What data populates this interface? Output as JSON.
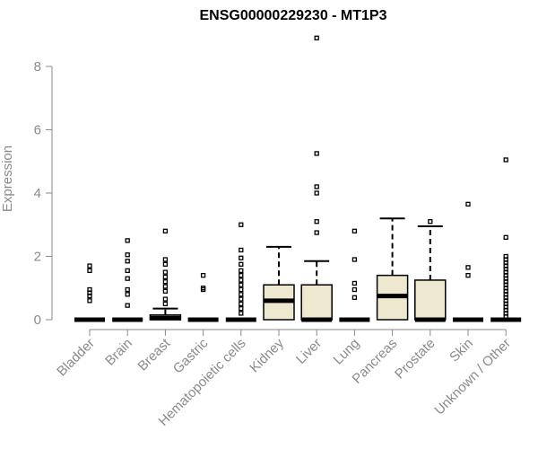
{
  "chart_data": {
    "type": "box",
    "title": "ENSG00000229230 - MT1P3",
    "xlabel": "",
    "ylabel": "Expression",
    "ylim": [
      0,
      8
    ],
    "yticks": [
      0,
      2,
      4,
      6,
      8
    ],
    "grid": false,
    "box_fill": "#efe8d0",
    "stroke_color": "#000000",
    "axis_color": "#8a8a8a",
    "categories": [
      "Bladder",
      "Brain",
      "Breast",
      "Gastric",
      "Hematopoietic cells",
      "Kidney",
      "Liver",
      "Lung",
      "Pancreas",
      "Prostate",
      "Skin",
      "Unknown / Other"
    ],
    "boxes": [
      {
        "q1": 0,
        "median": 0,
        "q3": 0,
        "whisker_low": 0,
        "whisker_high": 0,
        "outliers": [
          0.6,
          0.75,
          0.85,
          0.95,
          1.55,
          1.7
        ]
      },
      {
        "q1": 0,
        "median": 0,
        "q3": 0,
        "whisker_low": 0,
        "whisker_high": 0,
        "outliers": [
          0.45,
          0.8,
          0.95,
          1.3,
          1.55,
          1.85,
          2.05,
          2.5
        ]
      },
      {
        "q1": 0,
        "median": 0.05,
        "q3": 0.15,
        "whisker_low": 0,
        "whisker_high": 0.35,
        "outliers": [
          0.5,
          0.65,
          0.9,
          1.05,
          1.2,
          1.35,
          1.5,
          1.75,
          1.9,
          2.8
        ]
      },
      {
        "q1": 0,
        "median": 0,
        "q3": 0,
        "whisker_low": 0,
        "whisker_high": 0,
        "outliers": [
          0.95,
          1.0,
          1.4
        ]
      },
      {
        "q1": 0,
        "median": 0,
        "q3": 0,
        "whisker_low": 0,
        "whisker_high": 0,
        "outliers": [
          0.2,
          0.35,
          0.5,
          0.65,
          0.8,
          0.95,
          1.1,
          1.25,
          1.4,
          1.55,
          1.75,
          1.95,
          2.2,
          3.0
        ]
      },
      {
        "q1": 0,
        "median": 0.6,
        "q3": 1.1,
        "whisker_low": 0,
        "whisker_high": 2.3,
        "outliers": []
      },
      {
        "q1": 0,
        "median": 0,
        "q3": 1.1,
        "whisker_low": 0,
        "whisker_high": 1.85,
        "outliers": [
          2.75,
          3.1,
          4.0,
          4.2,
          5.25,
          8.9
        ]
      },
      {
        "q1": 0,
        "median": 0,
        "q3": 0,
        "whisker_low": 0,
        "whisker_high": 0,
        "outliers": [
          0.7,
          0.95,
          1.15,
          1.9,
          2.8
        ]
      },
      {
        "q1": 0,
        "median": 0.75,
        "q3": 1.4,
        "whisker_low": 0,
        "whisker_high": 3.2,
        "outliers": []
      },
      {
        "q1": 0,
        "median": 0,
        "q3": 1.25,
        "whisker_low": 0,
        "whisker_high": 2.95,
        "outliers": [
          3.1
        ]
      },
      {
        "q1": 0,
        "median": 0,
        "q3": 0,
        "whisker_low": 0,
        "whisker_high": 0,
        "outliers": [
          1.4,
          1.65,
          3.65
        ]
      },
      {
        "q1": 0,
        "median": 0,
        "q3": 0,
        "whisker_low": 0,
        "whisker_high": 0,
        "outliers": [
          0.1,
          0.2,
          0.3,
          0.4,
          0.5,
          0.6,
          0.7,
          0.8,
          0.9,
          1.0,
          1.1,
          1.2,
          1.3,
          1.4,
          1.5,
          1.6,
          1.7,
          1.8,
          1.9,
          2.0,
          2.6,
          5.05
        ]
      }
    ]
  }
}
